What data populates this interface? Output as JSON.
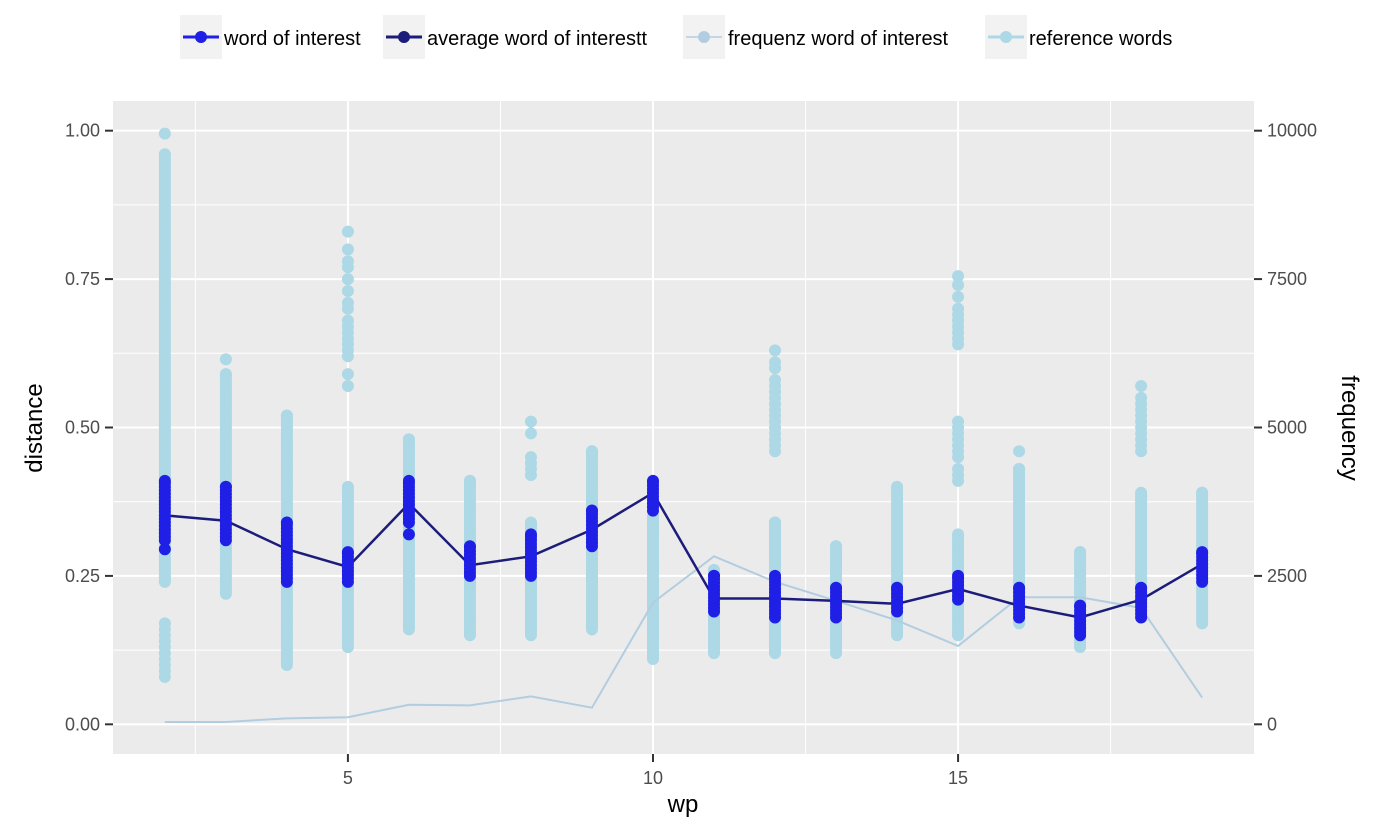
{
  "chart_data": {
    "type": "scatter",
    "title": "",
    "xlabel": "wp",
    "ylabel": "distance",
    "y2label": "frequency",
    "xlim": [
      1.15,
      19.85
    ],
    "ylim": [
      -0.05,
      1.05
    ],
    "y2lim": [
      -500,
      10500
    ],
    "x_ticks": [
      5,
      10,
      15
    ],
    "y_ticks": [
      0.0,
      0.25,
      0.5,
      0.75,
      1.0
    ],
    "y_tick_labels": [
      "0.00",
      "0.25",
      "0.50",
      "0.75",
      "1.00"
    ],
    "y2_ticks": [
      0,
      2500,
      5000,
      7500,
      10000
    ],
    "y2_tick_labels": [
      "0",
      "2500",
      "5000",
      "7500",
      "10000"
    ],
    "grid": true,
    "legend_position": "top",
    "colors": {
      "word_of_interest": "#1f1fe6",
      "average": "#1c1c7a",
      "frequenz": "#b3cde0",
      "reference": "#add8e6",
      "panel": "#ebebeb",
      "grid": "#ffffff"
    },
    "legend": [
      {
        "key": "woi",
        "label": "word of interest"
      },
      {
        "key": "avg",
        "label": "average word of interestt"
      },
      {
        "key": "freq",
        "label": "frequenz word of interest"
      },
      {
        "key": "ref",
        "label": "reference words"
      }
    ],
    "series": [
      {
        "name": "reference words",
        "type": "strips",
        "strips": [
          {
            "x": 2,
            "min": 0.24,
            "max": 0.96,
            "extra": [
              0.995,
              0.17,
              0.16,
              0.15,
              0.14,
              0.13,
              0.12,
              0.11,
              0.1,
              0.09,
              0.08
            ]
          },
          {
            "x": 3,
            "min": 0.22,
            "max": 0.59,
            "extra": [
              0.615
            ]
          },
          {
            "x": 4,
            "min": 0.1,
            "max": 0.52,
            "extra": []
          },
          {
            "x": 5,
            "min": 0.13,
            "max": 0.4,
            "extra": [
              0.83,
              0.8,
              0.78,
              0.77,
              0.75,
              0.73,
              0.71,
              0.7,
              0.68,
              0.67,
              0.66,
              0.65,
              0.64,
              0.63,
              0.62,
              0.59,
              0.57
            ]
          },
          {
            "x": 6,
            "min": 0.16,
            "max": 0.48,
            "extra": []
          },
          {
            "x": 7,
            "min": 0.15,
            "max": 0.41,
            "extra": []
          },
          {
            "x": 8,
            "min": 0.15,
            "max": 0.34,
            "extra": [
              0.51,
              0.49,
              0.45,
              0.44,
              0.43,
              0.42
            ]
          },
          {
            "x": 9,
            "min": 0.16,
            "max": 0.46,
            "extra": []
          },
          {
            "x": 10,
            "min": 0.11,
            "max": 0.35,
            "extra": []
          },
          {
            "x": 11,
            "min": 0.12,
            "max": 0.26,
            "extra": []
          },
          {
            "x": 12,
            "min": 0.12,
            "max": 0.34,
            "extra": [
              0.63,
              0.61,
              0.6,
              0.58,
              0.57,
              0.56,
              0.55,
              0.54,
              0.53,
              0.52,
              0.51,
              0.5,
              0.49,
              0.48,
              0.47,
              0.46
            ]
          },
          {
            "x": 13,
            "min": 0.12,
            "max": 0.3,
            "extra": []
          },
          {
            "x": 14,
            "min": 0.15,
            "max": 0.4,
            "extra": []
          },
          {
            "x": 15,
            "min": 0.15,
            "max": 0.32,
            "extra": [
              0.755,
              0.74,
              0.72,
              0.7,
              0.69,
              0.68,
              0.67,
              0.66,
              0.65,
              0.64,
              0.51,
              0.5,
              0.49,
              0.48,
              0.47,
              0.46,
              0.45,
              0.43,
              0.42,
              0.41
            ]
          },
          {
            "x": 16,
            "min": 0.17,
            "max": 0.43,
            "extra": [
              0.46
            ]
          },
          {
            "x": 17,
            "min": 0.13,
            "max": 0.29,
            "extra": []
          },
          {
            "x": 18,
            "min": 0.18,
            "max": 0.39,
            "extra": [
              0.57,
              0.55,
              0.54,
              0.53,
              0.52,
              0.51,
              0.5,
              0.49,
              0.48,
              0.47,
              0.46
            ]
          },
          {
            "x": 19,
            "min": 0.17,
            "max": 0.39,
            "extra": []
          }
        ]
      },
      {
        "name": "word of interest",
        "type": "strips",
        "strips": [
          {
            "x": 2,
            "min": 0.31,
            "max": 0.41,
            "extra": [
              0.295
            ]
          },
          {
            "x": 3,
            "min": 0.31,
            "max": 0.4,
            "extra": []
          },
          {
            "x": 4,
            "min": 0.24,
            "max": 0.34,
            "extra": []
          },
          {
            "x": 5,
            "min": 0.24,
            "max": 0.29,
            "extra": []
          },
          {
            "x": 6,
            "min": 0.34,
            "max": 0.41,
            "extra": [
              0.32
            ]
          },
          {
            "x": 7,
            "min": 0.25,
            "max": 0.3,
            "extra": []
          },
          {
            "x": 8,
            "min": 0.25,
            "max": 0.32,
            "extra": []
          },
          {
            "x": 9,
            "min": 0.3,
            "max": 0.36,
            "extra": []
          },
          {
            "x": 10,
            "min": 0.36,
            "max": 0.41,
            "extra": []
          },
          {
            "x": 11,
            "min": 0.19,
            "max": 0.25,
            "extra": []
          },
          {
            "x": 12,
            "min": 0.18,
            "max": 0.25,
            "extra": []
          },
          {
            "x": 13,
            "min": 0.18,
            "max": 0.23,
            "extra": []
          },
          {
            "x": 14,
            "min": 0.19,
            "max": 0.23,
            "extra": []
          },
          {
            "x": 15,
            "min": 0.21,
            "max": 0.25,
            "extra": []
          },
          {
            "x": 16,
            "min": 0.18,
            "max": 0.23,
            "extra": []
          },
          {
            "x": 17,
            "min": 0.15,
            "max": 0.2,
            "extra": []
          },
          {
            "x": 18,
            "min": 0.18,
            "max": 0.23,
            "extra": []
          },
          {
            "x": 19,
            "min": 0.24,
            "max": 0.29,
            "extra": []
          }
        ]
      },
      {
        "name": "average word of interestt",
        "type": "line",
        "x": [
          2,
          3,
          4,
          5,
          6,
          7,
          8,
          9,
          10,
          11,
          12,
          13,
          14,
          15,
          16,
          17,
          18,
          19
        ],
        "y": [
          0.352,
          0.343,
          0.295,
          0.265,
          0.372,
          0.268,
          0.283,
          0.328,
          0.39,
          0.212,
          0.212,
          0.208,
          0.203,
          0.228,
          0.2,
          0.18,
          0.21,
          0.27
        ]
      },
      {
        "name": "frequenz word of interest",
        "type": "line",
        "axis": "right",
        "x": [
          2,
          3,
          4,
          5,
          6,
          7,
          8,
          9,
          10,
          11,
          12,
          13,
          14,
          15,
          16,
          17,
          18,
          19
        ],
        "y": [
          40,
          40,
          100,
          120,
          330,
          320,
          470,
          280,
          2050,
          2830,
          2400,
          2080,
          1750,
          1320,
          2140,
          2140,
          1960,
          450
        ]
      }
    ]
  }
}
